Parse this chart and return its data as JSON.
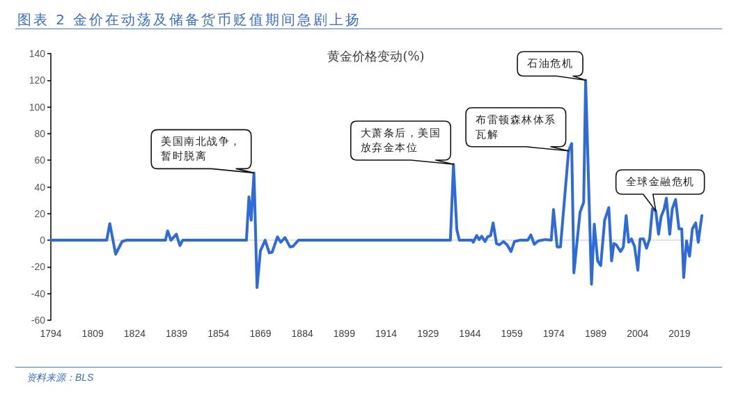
{
  "chart_data": {
    "type": "line",
    "title": "图表 2 金价在动荡及储备货币贬值期间急剧上扬",
    "subtitle": "黄金价格变动(%)",
    "x": [
      1794,
      1814,
      1815.1,
      1817.2,
      1819.5,
      1821,
      1835,
      1835.8,
      1837,
      1838.9,
      1840.2,
      1841.2,
      1864,
      1864.9,
      1865.7,
      1866.7,
      1867.8,
      1869,
      1870.7,
      1872.2,
      1873.2,
      1875.1,
      1876.3,
      1877.8,
      1879.6,
      1880.7,
      1882.6,
      1937,
      1938.1,
      1939.3,
      1940.2,
      1944.8,
      1945.2,
      1946.4,
      1947.3,
      1948.2,
      1949.4,
      1950.3,
      1951.4,
      1952.3,
      1953.5,
      1954.5,
      1956,
      1957.3,
      1958.7,
      1959.9,
      1961.8,
      1964.7,
      1965.8,
      1967,
      1968.5,
      1971,
      1973.1,
      1973.9,
      1975.2,
      1976.4,
      1979.3,
      1980.4,
      1981.2,
      1983.4,
      1984.7,
      1985.4,
      1987.5,
      1988.5,
      1989.7,
      1990.8,
      1992.2,
      1993.7,
      1994.7,
      1995.5,
      1996.4,
      1997.9,
      1998.9,
      1999.9,
      2000.8,
      2001.8,
      2002.9,
      2004.1,
      2004.9,
      2006.1,
      2007.2,
      2008.3,
      2009.3,
      2010.5,
      2011.5,
      2012.4,
      2013.5,
      2014.3,
      2015.5,
      2016.4,
      2017.6,
      2018.8,
      2019.8,
      2020.5,
      2021.5,
      2022.6,
      2023.6,
      2024.8,
      2025.7,
      2027
    ],
    "series": [
      {
        "color": "#2e6bd9",
        "values": [
          0,
          0,
          12.5,
          -10.5,
          -1,
          0,
          0,
          7,
          0,
          4.5,
          -4,
          0,
          0,
          32.5,
          15,
          50.5,
          -35.5,
          -8,
          0,
          -9.5,
          -9,
          2.5,
          -1.5,
          2,
          -5,
          -4.5,
          0,
          0,
          57,
          8,
          0,
          0,
          -1.5,
          3.5,
          0.5,
          3,
          -1,
          2.5,
          3.5,
          13,
          -2.5,
          -3.5,
          -1,
          -3.5,
          -8.5,
          -1,
          0,
          0,
          4,
          -3,
          -0.5,
          0.5,
          0,
          23,
          -5,
          -5,
          67,
          72.5,
          -24.5,
          21,
          28.5,
          120,
          -33,
          12,
          -15.5,
          -19,
          15,
          24.5,
          -15.5,
          -2.5,
          -3.5,
          -8.5,
          -5,
          18.5,
          -1.5,
          1,
          -4.5,
          -22.5,
          1,
          1,
          -6,
          1,
          23.5,
          22,
          4.5,
          17.5,
          23.5,
          31.5,
          4.5,
          23.5,
          30.5,
          8.5,
          8.5,
          -28,
          -0.5,
          -12,
          8.5,
          13,
          -1.5,
          18.5
        ]
      }
    ],
    "xlim": [
      1794,
      2027
    ],
    "xticks": [
      1794,
      1809,
      1824,
      1839,
      1854,
      1869,
      1884,
      1899,
      1914,
      1929,
      1944,
      1959,
      1974,
      1989,
      2004,
      2019
    ],
    "ylim": [
      -60,
      140
    ],
    "yticks": [
      -60,
      -40,
      -20,
      0,
      20,
      40,
      60,
      80,
      100,
      120,
      140
    ],
    "marker": "none",
    "annotations": [
      {
        "text": "美国南北战争，暂时脱离",
        "x": 1866.7,
        "y": 50.5
      },
      {
        "text": "大萧条后，美国放弃金本位",
        "x": 1938.1,
        "y": 57
      },
      {
        "text": "布雷顿森林体系瓦解",
        "x": 1979.3,
        "y": 67
      },
      {
        "text": "石油危机",
        "x": 1985.4,
        "y": 120
      },
      {
        "text": "全球金融危机",
        "x": 2010.5,
        "y": 22
      },
      "资料来源：BLS"
    ]
  }
}
